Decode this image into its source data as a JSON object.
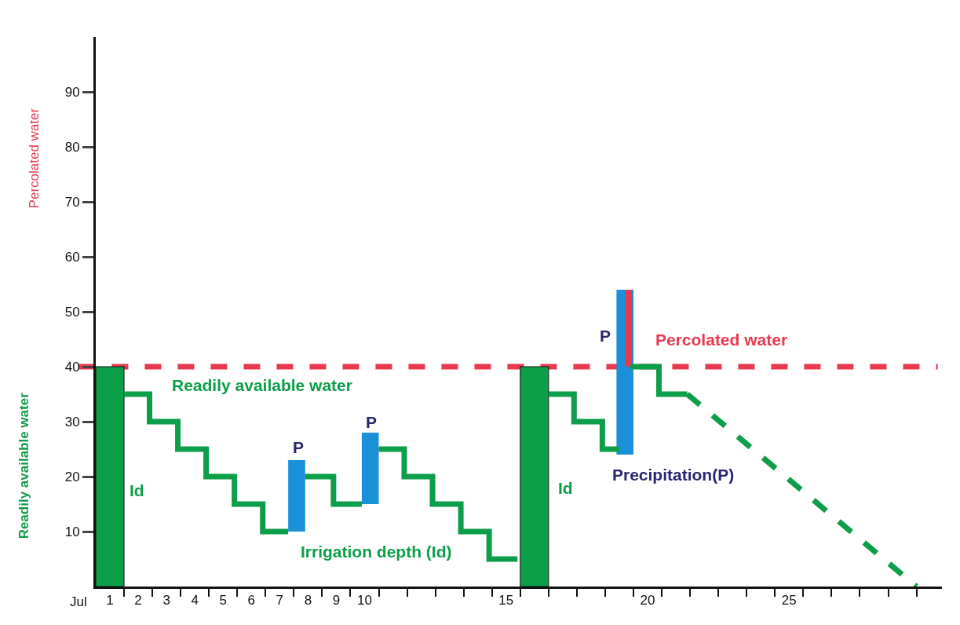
{
  "chart_data": {
    "type": "bar",
    "ylabel": "Readily available water",
    "xlim": [
      0.5,
      30.4
    ],
    "ylim": [
      0,
      100
    ],
    "yticks": [
      10,
      20,
      30,
      40,
      50,
      60,
      70,
      80,
      90
    ],
    "xticks": [
      1,
      2,
      3,
      4,
      5,
      6,
      7,
      8,
      9,
      10,
      15,
      20,
      25,
      {
        "value": 1.5,
        "label": null
      },
      {
        "value": 2.5,
        "label": null
      },
      {
        "value": 3.5,
        "label": null
      },
      {
        "value": 4.5,
        "label": null
      },
      {
        "value": 5.5,
        "label": null
      },
      {
        "value": 6.5,
        "label": null
      },
      {
        "value": 7.5,
        "label": null
      },
      {
        "value": 8.5,
        "label": null
      },
      {
        "value": 9.5,
        "label": null
      },
      {
        "value": 10.5,
        "label": null
      },
      {
        "value": 11.5,
        "label": null
      },
      {
        "value": 12.5,
        "label": null
      },
      {
        "value": 13.5,
        "label": null
      },
      {
        "value": 14.5,
        "label": null
      },
      {
        "value": 15.5,
        "label": null
      },
      {
        "value": 16.5,
        "label": null
      },
      {
        "value": 17.5,
        "label": null
      },
      {
        "value": 18.5,
        "label": null
      },
      {
        "value": 19.5,
        "label": null
      },
      {
        "value": 20.5,
        "label": null
      },
      {
        "value": 21.5,
        "label": null
      },
      {
        "value": 22.5,
        "label": null
      },
      {
        "value": 23.5,
        "label": null
      },
      {
        "value": 24.5,
        "label": null
      },
      {
        "value": 25.5,
        "label": null
      },
      {
        "value": 26.5,
        "label": null
      },
      {
        "value": 27.5,
        "label": null
      },
      {
        "value": 28.5,
        "label": null
      },
      {
        "value": 29.5,
        "label": null
      }
    ],
    "series": [
      {
        "color": "#0c9e48",
        "x": [
          1,
          16
        ],
        "base": [
          0,
          0
        ],
        "values": [
          40,
          40
        ]
      },
      {
        "color": "#1a90d8",
        "x": [
          7.6,
          10.2,
          19.2
        ],
        "base": [
          10,
          15,
          24
        ],
        "values": [
          13,
          13,
          30
        ]
      },
      {
        "color": "#e8394e",
        "x": [
          19.33
        ],
        "base": [
          40
        ],
        "values": [
          14
        ]
      },
      {
        "type": "step",
        "color": "#0c9e48",
        "line_style": "solid",
        "x": [
          1.5,
          2.4,
          3.4,
          4.4,
          5.4,
          6.4,
          7.3,
          7.6,
          7.9,
          8.9,
          9.9,
          10.2,
          10.5,
          11.4,
          12.4,
          13.4,
          14.4,
          15.4,
          16,
          16.5,
          17.4,
          18.4,
          19.0,
          19.2,
          19.4,
          20.4,
          21.4
        ],
        "values": [
          35,
          30,
          25,
          20,
          15,
          10,
          10,
          null,
          20,
          15,
          15,
          null,
          25,
          20,
          15,
          10,
          5,
          5,
          null,
          35,
          30,
          25,
          25,
          null,
          40,
          35,
          35
        ]
      },
      {
        "type": "line",
        "color": "#0c9e48",
        "line_style": "dashed",
        "x": [
          21.4,
          29.5
        ],
        "values": [
          35,
          0
        ]
      }
    ],
    "ref_lines": [
      {
        "axis": "y",
        "value": 40,
        "color": "#e8394e",
        "line_style": "dashed"
      }
    ],
    "annotations": [
      "Percolated water",
      "Jul",
      "Id",
      "Id",
      "P",
      "P",
      "P",
      "Readily available water",
      "Irrigation depth (Id)",
      "Percolated water",
      "Precipitation(P)"
    ],
    "grid": false
  }
}
